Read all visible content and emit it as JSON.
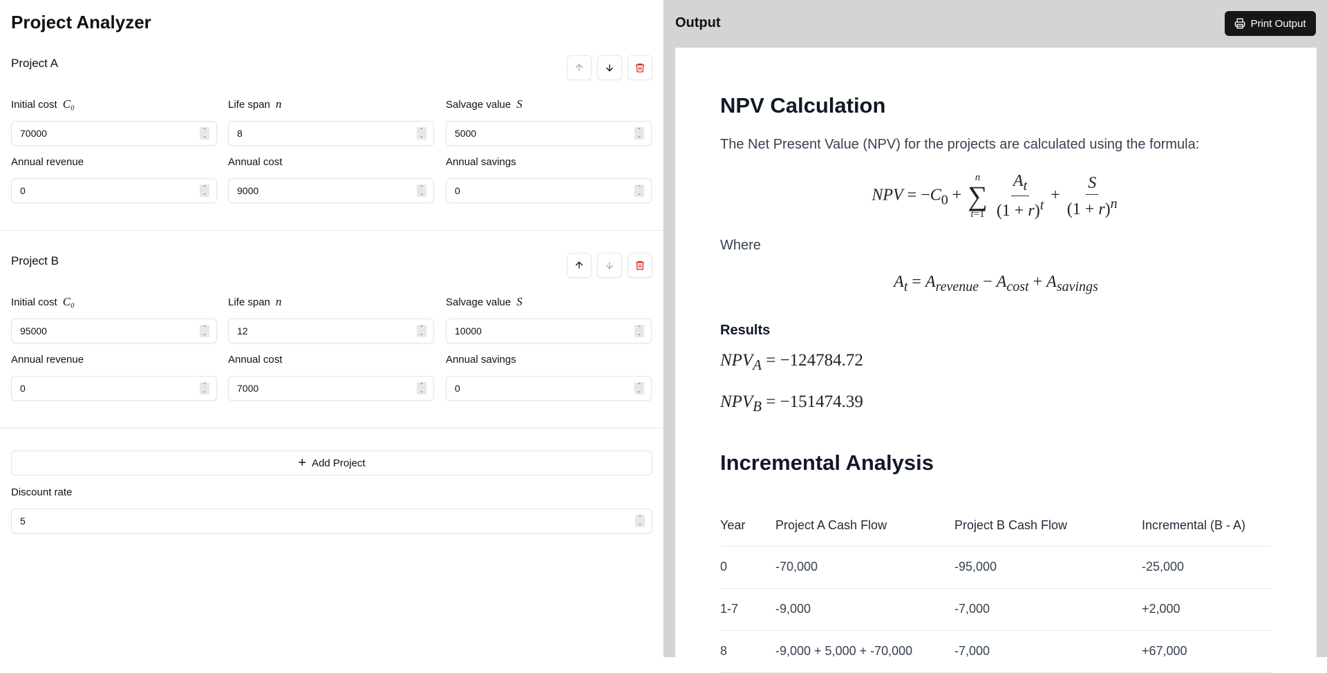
{
  "app": {
    "title": "Project Analyzer"
  },
  "projects": [
    {
      "name": "Project A",
      "up_enabled": false,
      "down_enabled": true,
      "fields": {
        "initial_cost": {
          "label": "Initial cost",
          "symbol": "C₀",
          "value": "70000"
        },
        "life_span": {
          "label": "Life span",
          "symbol": "n",
          "value": "8"
        },
        "salvage_value": {
          "label": "Salvage value",
          "symbol": "S",
          "value": "5000"
        },
        "annual_revenue": {
          "label": "Annual revenue",
          "value": "0"
        },
        "annual_cost": {
          "label": "Annual cost",
          "value": "9000"
        },
        "annual_savings": {
          "label": "Annual savings",
          "value": "0"
        }
      }
    },
    {
      "name": "Project B",
      "up_enabled": true,
      "down_enabled": false,
      "fields": {
        "initial_cost": {
          "label": "Initial cost",
          "symbol": "C₀",
          "value": "95000"
        },
        "life_span": {
          "label": "Life span",
          "symbol": "n",
          "value": "12"
        },
        "salvage_value": {
          "label": "Salvage value",
          "symbol": "S",
          "value": "10000"
        },
        "annual_revenue": {
          "label": "Annual revenue",
          "value": "0"
        },
        "annual_cost": {
          "label": "Annual cost",
          "value": "7000"
        },
        "annual_savings": {
          "label": "Annual savings",
          "value": "0"
        }
      }
    }
  ],
  "add_project_label": "Add Project",
  "discount_rate": {
    "label": "Discount rate",
    "value": "5"
  },
  "output": {
    "title": "Output",
    "print_label": "Print Output",
    "npv_heading": "NPV Calculation",
    "npv_intro": "The Net Present Value (NPV) for the projects are calculated using the formula:",
    "where_label": "Where",
    "results_heading": "Results",
    "results": [
      {
        "label": "NPV",
        "sub": "A",
        "value": "−124784.72"
      },
      {
        "label": "NPV",
        "sub": "B",
        "value": "−151474.39"
      }
    ],
    "incremental_heading": "Incremental Analysis",
    "table": {
      "headers": [
        "Year",
        "Project A Cash Flow",
        "Project B Cash Flow",
        "Incremental (B - A)"
      ],
      "rows": [
        [
          "0",
          "-70,000",
          "-95,000",
          "-25,000"
        ],
        [
          "1-7",
          "-9,000",
          "-7,000",
          "+2,000"
        ],
        [
          "8",
          "-9,000 + 5,000 + -70,000",
          "-7,000",
          "+67,000"
        ]
      ]
    }
  },
  "colors": {
    "danger": "#dc2626",
    "print_bg": "#171717",
    "output_bg": "#d4d4d4"
  }
}
